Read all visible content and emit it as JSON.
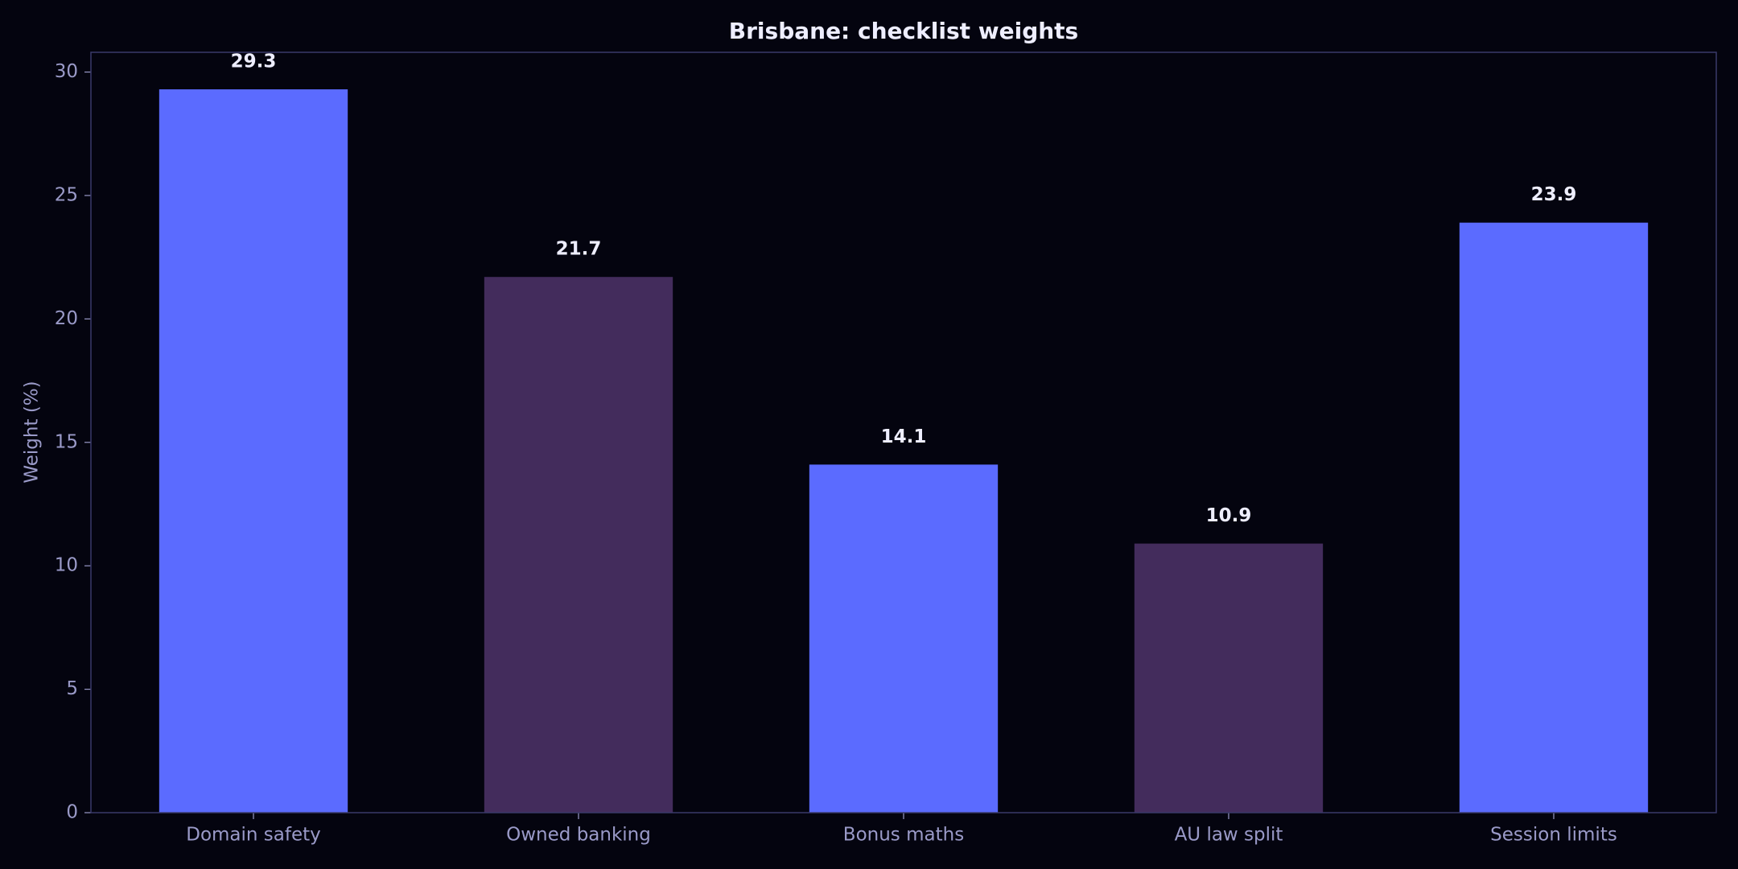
{
  "chart_data": {
    "type": "bar",
    "title": "Brisbane: checklist weights",
    "y_label": "Weight (%)",
    "categories": [
      "Domain safety",
      "Owned banking",
      "Bonus maths",
      "AU law split",
      "Session limits"
    ],
    "values": [
      29.3,
      21.7,
      14.1,
      10.9,
      23.9
    ],
    "colors": [
      "#5b6bff",
      "#432c5c",
      "#5b6bff",
      "#432c5c",
      "#5b6bff"
    ],
    "ylim": [
      0,
      30.8
    ],
    "yticks": [
      0,
      5,
      10,
      15,
      20,
      25,
      30
    ],
    "grid": false
  }
}
